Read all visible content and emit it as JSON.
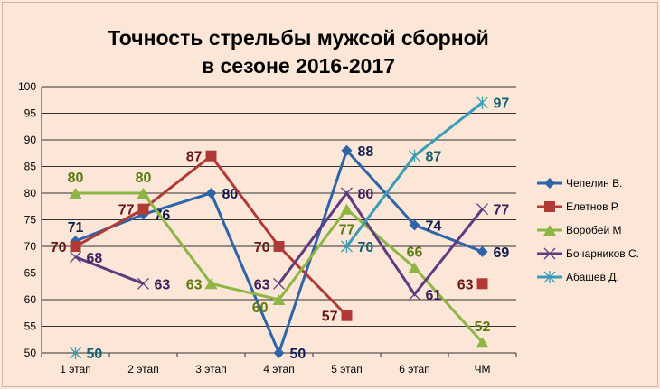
{
  "chart_data": {
    "type": "line",
    "title": "Точность стрельбы мужсой сборной в сезоне 2016-2017",
    "title_lines": [
      "Точность стрельбы мужсой сборной",
      "в сезоне 2016-2017"
    ],
    "categories": [
      "1 этап",
      "2 этап",
      "3 этап",
      "4 этап",
      "5 этап",
      "6 этап",
      "ЧМ"
    ],
    "ylim": [
      50,
      100
    ],
    "yticks": [
      50,
      55,
      60,
      65,
      70,
      75,
      80,
      85,
      90,
      95,
      100
    ],
    "grid": true,
    "legend": "right",
    "data_labels": true,
    "series": [
      {
        "name": "Чепелин В.",
        "color": "#2e64a8",
        "label_color": "#0d1d4d",
        "marker": "diamond",
        "values": [
          71,
          76,
          80,
          50,
          88,
          74,
          69
        ]
      },
      {
        "name": "Елетнов Р.",
        "color": "#b03a36",
        "label_color": "#6b1717",
        "marker": "square",
        "values": [
          70,
          77,
          87,
          70,
          57,
          null,
          63
        ]
      },
      {
        "name": "Воробей М",
        "color": "#8db645",
        "label_color": "#5e7a12",
        "marker": "triangle",
        "values": [
          80,
          80,
          63,
          60,
          77,
          66,
          52
        ]
      },
      {
        "name": "Бочарников С.",
        "color": "#5d3d80",
        "label_color": "#3d1f5c",
        "marker": "x",
        "values": [
          68,
          63,
          null,
          63,
          80,
          61,
          77
        ]
      },
      {
        "name": "Абашев Д.",
        "color": "#3a9db5",
        "label_color": "#17606f",
        "marker": "star",
        "values": [
          50,
          null,
          null,
          null,
          70,
          87,
          97
        ]
      }
    ]
  }
}
